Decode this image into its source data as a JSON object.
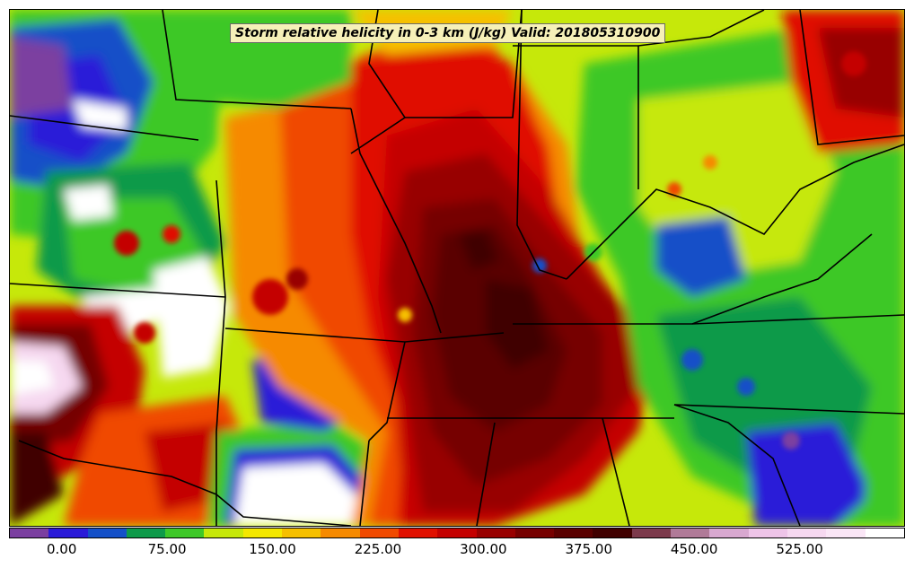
{
  "map": {
    "title": "Storm relative helicity in 0-3 km (J/kg) Valid: 201805310900"
  },
  "colorbar": {
    "tick_labels": [
      "0.00",
      "75.00",
      "150.00",
      "225.00",
      "300.00",
      "375.00",
      "450.00",
      "525.00"
    ],
    "colors": [
      "#7b3fa0",
      "#2a1ad8",
      "#1450c8",
      "#0e9a4a",
      "#3ec828",
      "#c6e80a",
      "#f4e800",
      "#f6c000",
      "#f68a00",
      "#f04a00",
      "#e01000",
      "#c40000",
      "#980000",
      "#760000",
      "#5a0000",
      "#400000",
      "#7c3a4c",
      "#b07a98",
      "#d8a8d0",
      "#eec4e8",
      "#f6d8f0",
      "#fae6f6",
      "#ffffff"
    ],
    "tick_values": [
      0,
      75,
      150,
      225,
      300,
      375,
      450,
      525
    ],
    "range": [
      -37.5,
      600
    ]
  }
}
